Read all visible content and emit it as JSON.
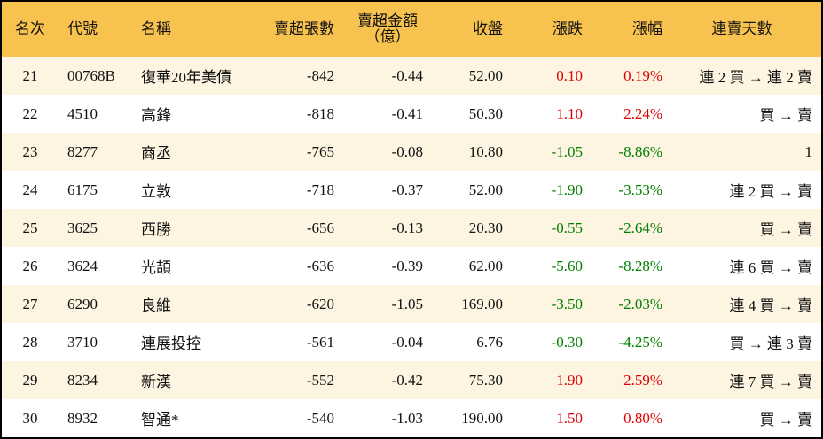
{
  "headers": [
    "名次",
    "代號",
    "名稱",
    "賣超張數",
    "賣超金額\n（億）",
    "收盤",
    "漲跌",
    "漲幅",
    "連賣天數"
  ],
  "colors": {
    "header_bg": "#F8C24F",
    "row_alt": "#FDF4E1",
    "up": "#e00000",
    "down": "#008000"
  },
  "rows": [
    {
      "rank": "21",
      "code": "00768B",
      "name": "復華20年美債",
      "shares": "-842",
      "amount": "-0.44",
      "close": "52.00",
      "change": "0.10",
      "pct": "0.19%",
      "dir": "up",
      "days": "連 2 買 → 連 2 賣"
    },
    {
      "rank": "22",
      "code": "4510",
      "name": "高鋒",
      "shares": "-818",
      "amount": "-0.41",
      "close": "50.30",
      "change": "1.10",
      "pct": "2.24%",
      "dir": "up",
      "days": "買 → 賣"
    },
    {
      "rank": "23",
      "code": "8277",
      "name": "商丞",
      "shares": "-765",
      "amount": "-0.08",
      "close": "10.80",
      "change": "-1.05",
      "pct": "-8.86%",
      "dir": "down",
      "days": "1"
    },
    {
      "rank": "24",
      "code": "6175",
      "name": "立敦",
      "shares": "-718",
      "amount": "-0.37",
      "close": "52.00",
      "change": "-1.90",
      "pct": "-3.53%",
      "dir": "down",
      "days": "連 2 買 → 賣"
    },
    {
      "rank": "25",
      "code": "3625",
      "name": "西勝",
      "shares": "-656",
      "amount": "-0.13",
      "close": "20.30",
      "change": "-0.55",
      "pct": "-2.64%",
      "dir": "down",
      "days": "買 → 賣"
    },
    {
      "rank": "26",
      "code": "3624",
      "name": "光頡",
      "shares": "-636",
      "amount": "-0.39",
      "close": "62.00",
      "change": "-5.60",
      "pct": "-8.28%",
      "dir": "down",
      "days": "連 6 買 → 賣"
    },
    {
      "rank": "27",
      "code": "6290",
      "name": "良維",
      "shares": "-620",
      "amount": "-1.05",
      "close": "169.00",
      "change": "-3.50",
      "pct": "-2.03%",
      "dir": "down",
      "days": "連 4 買 → 賣"
    },
    {
      "rank": "28",
      "code": "3710",
      "name": "連展投控",
      "shares": "-561",
      "amount": "-0.04",
      "close": "6.76",
      "change": "-0.30",
      "pct": "-4.25%",
      "dir": "down",
      "days": "買 → 連 3 賣"
    },
    {
      "rank": "29",
      "code": "8234",
      "name": "新漢",
      "shares": "-552",
      "amount": "-0.42",
      "close": "75.30",
      "change": "1.90",
      "pct": "2.59%",
      "dir": "up",
      "days": "連 7 買 → 賣"
    },
    {
      "rank": "30",
      "code": "8932",
      "name": "智通*",
      "shares": "-540",
      "amount": "-1.03",
      "close": "190.00",
      "change": "1.50",
      "pct": "0.80%",
      "dir": "up",
      "days": "買 → 賣"
    }
  ]
}
